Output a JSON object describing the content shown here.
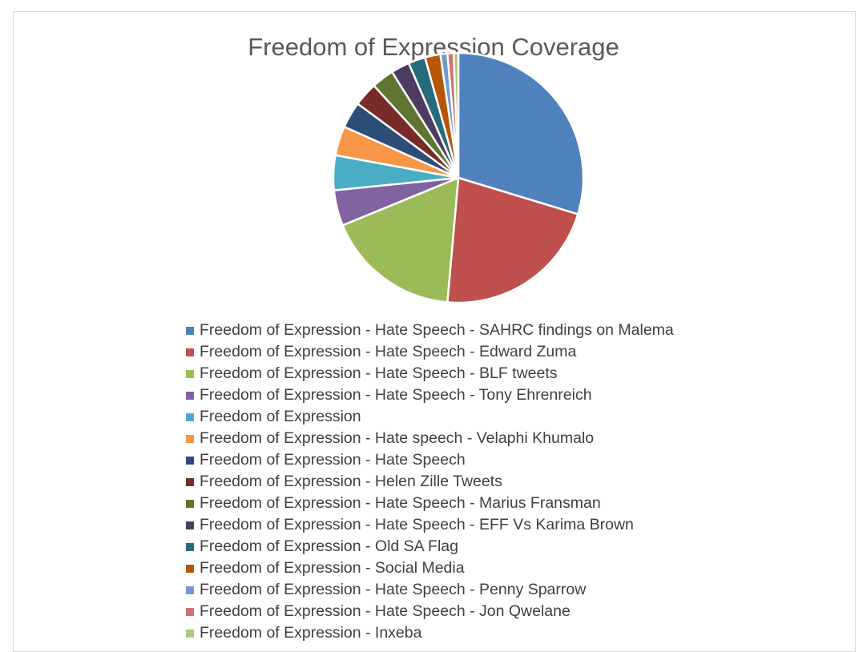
{
  "chart_data": {
    "type": "pie",
    "title": "Freedom of Expression Coverage",
    "legend_position": "bottom",
    "start_angle_deg": 0,
    "direction": "clockwise",
    "slices": [
      {
        "label": "Freedom of Expression - Hate Speech - SAHRC findings on Malema",
        "value": 29.7,
        "color": "#4F81BD"
      },
      {
        "label": "Freedom of Expression - Hate Speech - Edward Zuma",
        "value": 21.7,
        "color": "#C0504D"
      },
      {
        "label": "Freedom of Expression - Hate Speech - BLF tweets",
        "value": 17.4,
        "color": "#9BBB59"
      },
      {
        "label": "Freedom of Expression - Hate Speech - Tony Ehrenreich",
        "value": 4.6,
        "color": "#8064A2"
      },
      {
        "label": "Freedom of Expression",
        "value": 4.5,
        "color": "#4BACC6"
      },
      {
        "label": "Freedom of Expression - Hate speech - Velaphi Khumalo",
        "value": 3.8,
        "color": "#F79646"
      },
      {
        "label": "Freedom of Expression - Hate Speech",
        "value": 3.4,
        "color": "#2C4D75"
      },
      {
        "label": "Freedom of Expression - Helen Zille Tweets",
        "value": 3.1,
        "color": "#772C2A"
      },
      {
        "label": "Freedom of Expression - Hate Speech - Marius Fransman",
        "value": 2.9,
        "color": "#5F7530"
      },
      {
        "label": "Freedom of Expression - Hate Speech - EFF Vs Karima Brown",
        "value": 2.4,
        "color": "#4D3B62"
      },
      {
        "label": "Freedom of Expression - Old SA Flag",
        "value": 2.2,
        "color": "#276A7C"
      },
      {
        "label": "Freedom of Expression - Social Media",
        "value": 2.0,
        "color": "#B65708"
      },
      {
        "label": "Freedom of Expression - Hate Speech - Penny Sparrow",
        "value": 0.9,
        "color": "#729ACA"
      },
      {
        "label": "Freedom of Expression - Hate Speech - Jon Qwelane",
        "value": 0.8,
        "color": "#CD7371"
      },
      {
        "label": "Freedom of Expression - Inxeba",
        "value": 0.6,
        "color": "#AFC97A"
      }
    ]
  }
}
